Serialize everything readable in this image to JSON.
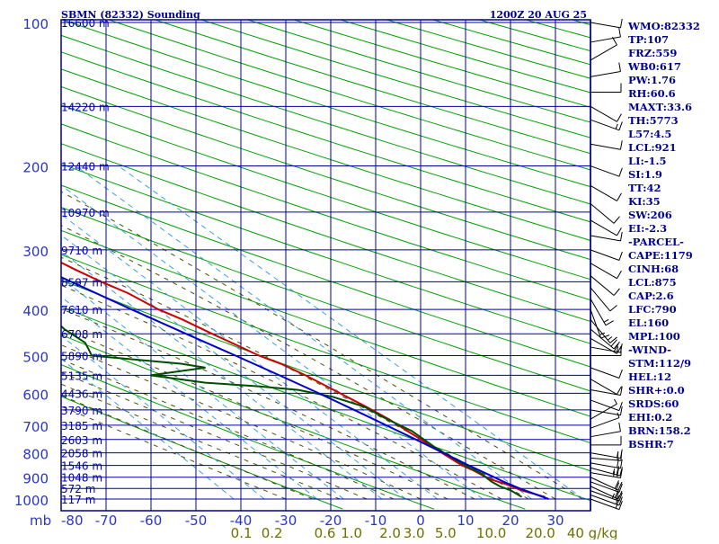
{
  "header": {
    "station": "SBMN (82332) Sounding",
    "time": "1200Z 20 AUG 25"
  },
  "colors": {
    "border": "#00008b",
    "grid": "#0000a0",
    "axis_label": "#2a35c8",
    "temperature": "#cc0000",
    "dewpoint": "#004d00",
    "parcel": "#0000cc",
    "dry_adiabat": "#00a000",
    "moist_adiabat": "#4d4d00",
    "mixing_ratio": "#3aa0e0",
    "wind_barb": "#000000",
    "stats_text": "#00008b",
    "mixratio_label": "#707000"
  },
  "chart_data": {
    "type": "line",
    "title": "SBMN (82332) Sounding",
    "x_axis": {
      "label": "",
      "range": [
        -80,
        40
      ],
      "ticks": [
        -80,
        -70,
        -60,
        -50,
        -40,
        -30,
        -20,
        -10,
        0,
        10,
        20,
        30
      ],
      "tick_labels": [
        "-80",
        "-70",
        "-60",
        "-50",
        "-40",
        "-30",
        "-20",
        "-10",
        "0",
        "10",
        "20",
        "30"
      ]
    },
    "y_axis": {
      "label": "mb",
      "scale": "log-pressure",
      "range": [
        1000,
        100
      ],
      "ticks": [
        100,
        200,
        300,
        400,
        500,
        600,
        700,
        800,
        900,
        1000
      ],
      "tick_labels": [
        "100",
        "200",
        "300",
        "400",
        "500",
        "600",
        "700",
        "800",
        "900",
        "1000"
      ]
    },
    "height_labels": [
      {
        "p": 100,
        "label": "16600 m"
      },
      {
        "p": 150,
        "label": "14220 m"
      },
      {
        "p": 200,
        "label": "12440 m"
      },
      {
        "p": 250,
        "label": "10970 m"
      },
      {
        "p": 300,
        "label": "9710 m"
      },
      {
        "p": 350,
        "label": "8597 m"
      },
      {
        "p": 400,
        "label": "7610 m"
      },
      {
        "p": 450,
        "label": "6708 m"
      },
      {
        "p": 500,
        "label": "5890 m"
      },
      {
        "p": 550,
        "label": "5135 m"
      },
      {
        "p": 600,
        "label": "4436 m"
      },
      {
        "p": 650,
        "label": "3790 m"
      },
      {
        "p": 700,
        "label": "3185 m"
      },
      {
        "p": 750,
        "label": "2603 m"
      },
      {
        "p": 800,
        "label": "2058 m"
      },
      {
        "p": 850,
        "label": "1546 m"
      },
      {
        "p": 900,
        "label": "1048 m"
      },
      {
        "p": 950,
        "label": "572 m"
      },
      {
        "p": 1000,
        "label": "117 m"
      }
    ],
    "mixing_ratio_labels": [
      "0.1",
      "0.2",
      "0.6",
      "1.0",
      "2.0",
      "3.0",
      "5.0",
      "10.0",
      "20.0",
      "40 g/kg"
    ],
    "mixing_ratio_values": [
      0.1,
      0.2,
      0.6,
      1.0,
      2.0,
      3.0,
      5.0,
      10.0,
      20.0,
      40.0
    ],
    "series": [
      {
        "kind": "temperature",
        "points": [
          [
            990,
            28.2
          ],
          [
            960,
            24.5
          ],
          [
            930,
            22.4
          ],
          [
            910,
            20.2
          ],
          [
            890,
            19.2
          ],
          [
            870,
            18.3
          ],
          [
            850,
            17.0
          ],
          [
            800,
            15.4
          ],
          [
            760,
            14.2
          ],
          [
            720,
            12.8
          ],
          [
            680,
            11.4
          ],
          [
            640,
            9.2
          ],
          [
            610,
            7.2
          ],
          [
            580,
            5.2
          ],
          [
            550,
            3.0
          ],
          [
            520,
            0.2
          ],
          [
            500,
            -2.8
          ],
          [
            480,
            -4.8
          ],
          [
            450,
            -8.2
          ],
          [
            420,
            -11.5
          ],
          [
            400,
            -14.5
          ],
          [
            370,
            -17.5
          ],
          [
            350,
            -20.8
          ],
          [
            330,
            -23.8
          ],
          [
            300,
            -28.0
          ],
          [
            280,
            -31.2
          ],
          [
            260,
            -34.5
          ],
          [
            240,
            -38.0
          ],
          [
            220,
            -42.0
          ],
          [
            200,
            -46.5
          ],
          [
            185,
            -50.5
          ],
          [
            170,
            -54.5
          ],
          [
            155,
            -58.5
          ],
          [
            140,
            -63.5
          ],
          [
            132,
            -66.5
          ],
          [
            124,
            -67.8
          ],
          [
            115,
            -69.2
          ],
          [
            105,
            -70.5
          ],
          [
            100,
            -72.0
          ]
        ]
      },
      {
        "kind": "dewpoint",
        "points": [
          [
            990,
            23.0
          ],
          [
            960,
            22.1
          ],
          [
            940,
            20.6
          ],
          [
            920,
            19.8
          ],
          [
            880,
            19.3
          ],
          [
            860,
            18.1
          ],
          [
            820,
            16.6
          ],
          [
            780,
            15.2
          ],
          [
            720,
            13.8
          ],
          [
            680,
            11.0
          ],
          [
            640,
            8.8
          ],
          [
            610,
            4.0
          ],
          [
            590,
            -2.0
          ],
          [
            580,
            -10.0
          ],
          [
            570,
            -21.0
          ],
          [
            550,
            -31.5
          ],
          [
            530,
            -17.5
          ],
          [
            520,
            -22.0
          ],
          [
            500,
            -40.0
          ],
          [
            490,
            -39.5
          ],
          [
            470,
            -38.5
          ],
          [
            440,
            -40.0
          ],
          [
            420,
            -40.0
          ],
          [
            400,
            -37.5
          ],
          [
            390,
            -40.0
          ],
          [
            380,
            -42.0
          ],
          [
            355,
            -44.0
          ],
          [
            320,
            -40.5
          ],
          [
            310,
            -38.8
          ],
          [
            300,
            -47.5
          ],
          [
            290,
            -44.0
          ],
          [
            270,
            -43.0
          ],
          [
            245,
            -40.5
          ],
          [
            240,
            -54.5
          ],
          [
            230,
            -50.0
          ],
          [
            220,
            -47.0
          ],
          [
            210,
            -53.5
          ],
          [
            200,
            -59.5
          ],
          [
            180,
            -59.5
          ],
          [
            175,
            -62.0
          ],
          [
            165,
            -64.0
          ],
          [
            160,
            -65.0
          ],
          [
            150,
            -70.0
          ],
          [
            145,
            -69.5
          ],
          [
            135,
            -65.5
          ],
          [
            130,
            -70.0
          ]
        ]
      },
      {
        "kind": "parcel",
        "points": [
          [
            1000,
            28.5
          ],
          [
            950,
            24.5
          ],
          [
            920,
            22.5
          ],
          [
            900,
            21.4
          ],
          [
            875,
            20.0
          ],
          [
            850,
            18.5
          ],
          [
            800,
            15.7
          ],
          [
            750,
            12.7
          ],
          [
            700,
            9.4
          ],
          [
            650,
            5.8
          ],
          [
            600,
            1.8
          ],
          [
            550,
            -2.8
          ],
          [
            500,
            -8.0
          ],
          [
            450,
            -14.0
          ],
          [
            400,
            -20.5
          ],
          [
            350,
            -27.5
          ],
          [
            300,
            -35.5
          ],
          [
            250,
            -44.8
          ],
          [
            200,
            -55.8
          ],
          [
            180,
            -60.8
          ],
          [
            160,
            -66.3
          ],
          [
            150,
            -69.2
          ],
          [
            130,
            -75.8
          ],
          [
            120,
            -79.6
          ],
          [
            116,
            -81.0
          ]
        ]
      }
    ],
    "dry_adiabats_theta_K": [
      250,
      270,
      290,
      310,
      330,
      350,
      370,
      390,
      410,
      430,
      450,
      470,
      490,
      510,
      530,
      550,
      570,
      590,
      610,
      630,
      650,
      670,
      690,
      710,
      730,
      750,
      770,
      790,
      810,
      830
    ],
    "moist_adiabats_C": [
      -30,
      -24,
      -18,
      -12,
      -6,
      0,
      6,
      12,
      18,
      24,
      30,
      36
    ],
    "winds_kt": [
      {
        "p": 1000,
        "dir": 110,
        "spd": 20
      },
      {
        "p": 980,
        "dir": 110,
        "spd": 20
      },
      {
        "p": 960,
        "dir": 110,
        "spd": 25
      },
      {
        "p": 940,
        "dir": 115,
        "spd": 20
      },
      {
        "p": 920,
        "dir": 110,
        "spd": 20
      },
      {
        "p": 900,
        "dir": 115,
        "spd": 20
      },
      {
        "p": 880,
        "dir": 100,
        "spd": 25
      },
      {
        "p": 860,
        "dir": 105,
        "spd": 25
      },
      {
        "p": 840,
        "dir": 100,
        "spd": 20
      },
      {
        "p": 820,
        "dir": 95,
        "spd": 20
      },
      {
        "p": 800,
        "dir": 100,
        "spd": 15
      },
      {
        "p": 770,
        "dir": 90,
        "spd": 10
      },
      {
        "p": 740,
        "dir": 80,
        "spd": 10
      },
      {
        "p": 710,
        "dir": 70,
        "spd": 5
      },
      {
        "p": 680,
        "dir": 60,
        "spd": 5
      },
      {
        "p": 650,
        "dir": 100,
        "spd": 10
      },
      {
        "p": 620,
        "dir": 110,
        "spd": 10
      },
      {
        "p": 590,
        "dir": 100,
        "spd": 10
      },
      {
        "p": 560,
        "dir": 120,
        "spd": 10
      },
      {
        "p": 530,
        "dir": 110,
        "spd": 10
      },
      {
        "p": 500,
        "dir": 90,
        "spd": 10
      },
      {
        "p": 480,
        "dir": 100,
        "spd": 15
      },
      {
        "p": 460,
        "dir": 120,
        "spd": 20
      },
      {
        "p": 440,
        "dir": 130,
        "spd": 20
      },
      {
        "p": 420,
        "dir": 140,
        "spd": 15
      },
      {
        "p": 400,
        "dir": 160,
        "spd": 15
      },
      {
        "p": 380,
        "dir": 150,
        "spd": 15
      },
      {
        "p": 360,
        "dir": 140,
        "spd": 10
      },
      {
        "p": 340,
        "dir": 130,
        "spd": 10
      },
      {
        "p": 320,
        "dir": 120,
        "spd": 10
      },
      {
        "p": 300,
        "dir": 110,
        "spd": 10
      },
      {
        "p": 280,
        "dir": 100,
        "spd": 10
      },
      {
        "p": 260,
        "dir": 120,
        "spd": 10
      },
      {
        "p": 240,
        "dir": 130,
        "spd": 10
      },
      {
        "p": 220,
        "dir": 120,
        "spd": 10
      },
      {
        "p": 200,
        "dir": 110,
        "spd": 10
      },
      {
        "p": 180,
        "dir": 100,
        "spd": 10
      },
      {
        "p": 160,
        "dir": 110,
        "spd": 15
      },
      {
        "p": 150,
        "dir": 120,
        "spd": 10
      },
      {
        "p": 140,
        "dir": 90,
        "spd": 10
      },
      {
        "p": 130,
        "dir": 80,
        "spd": 10
      },
      {
        "p": 120,
        "dir": 60,
        "spd": 10
      },
      {
        "p": 110,
        "dir": 80,
        "spd": 10
      },
      {
        "p": 100,
        "dir": 100,
        "spd": 10
      }
    ]
  },
  "indices": [
    "WMO:82332",
    "TP:107",
    "FRZ:559",
    "WB0:617",
    "PW:1.76",
    "RH:60.6",
    "MAXT:33.6",
    "TH:5773",
    "L57:4.5",
    "LCL:921",
    "LI:-1.5",
    "SI:1.9",
    "TT:42",
    "KI:35",
    "SW:206",
    "EI:-2.3",
    "-PARCEL-",
    "CAPE:1179",
    "CINH:68",
    "LCL:875",
    "CAP:2.6",
    "LFC:790",
    "EL:160",
    "MPL:100",
    "-WIND-",
    "STM:112/9",
    "HEL:12",
    "SHR+:0.0",
    "SRDS:60",
    "EHI:0.2",
    "BRN:158.2",
    "BSHR:7"
  ]
}
